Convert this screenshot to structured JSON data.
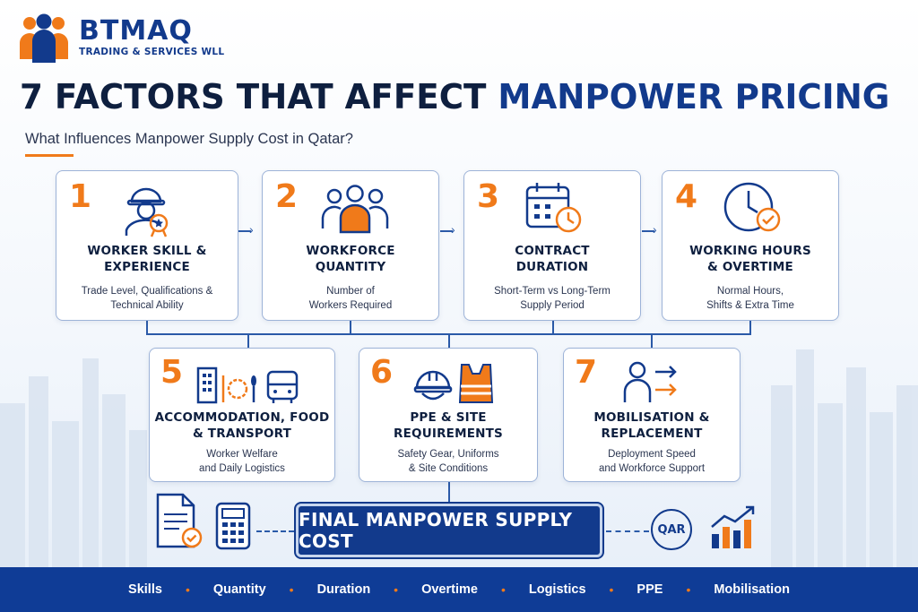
{
  "brand": {
    "name": "BTMAQ",
    "subtitle": "TRADING & SERVICES WLL"
  },
  "headline": {
    "part1": "7 FACTORS THAT AFFECT ",
    "part2": "MANPOWER PRICING"
  },
  "subheadline": "What Influences Manpower Supply Cost in Qatar?",
  "factors": [
    {
      "num": "1",
      "title1": "WORKER SKILL &",
      "title2": "EXPERIENCE",
      "desc1": "Trade Level, Qualifications &",
      "desc2": "Technical Ability",
      "icon": "worker-badge-icon"
    },
    {
      "num": "2",
      "title1": "WORKFORCE",
      "title2": "QUANTITY",
      "desc1": "Number of",
      "desc2": "Workers Required",
      "icon": "group-icon"
    },
    {
      "num": "3",
      "title1": "CONTRACT",
      "title2": "DURATION",
      "desc1": "Short-Term vs Long-Term",
      "desc2": "Supply Period",
      "icon": "calendar-clock-icon"
    },
    {
      "num": "4",
      "title1": "WORKING HOURS",
      "title2": "& OVERTIME",
      "desc1": "Normal Hours,",
      "desc2": "Shifts & Extra Time",
      "icon": "clock-check-icon"
    },
    {
      "num": "5",
      "title1": "ACCOMMODATION, FOOD",
      "title2": "& TRANSPORT",
      "desc1": "Worker Welfare",
      "desc2": "and Daily Logistics",
      "icon": "building-food-bus-icon"
    },
    {
      "num": "6",
      "title1": "PPE & SITE",
      "title2": "REQUIREMENTS",
      "desc1": "Safety Gear, Uniforms",
      "desc2": "& Site Conditions",
      "icon": "helmet-vest-icon"
    },
    {
      "num": "7",
      "title1": "MOBILISATION &",
      "title2": "REPLACEMENT",
      "desc1": "Deployment Speed",
      "desc2": "and Workforce Support",
      "icon": "person-arrows-icon"
    }
  ],
  "final": {
    "label": "FINAL MANPOWER SUPPLY COST",
    "currency": "QAR"
  },
  "footer": [
    "Skills",
    "Quantity",
    "Duration",
    "Overtime",
    "Logistics",
    "PPE",
    "Mobilisation"
  ],
  "colors": {
    "navy": "#123a8c",
    "orange": "#f07a1a",
    "footer_bg": "#0f3c96"
  }
}
